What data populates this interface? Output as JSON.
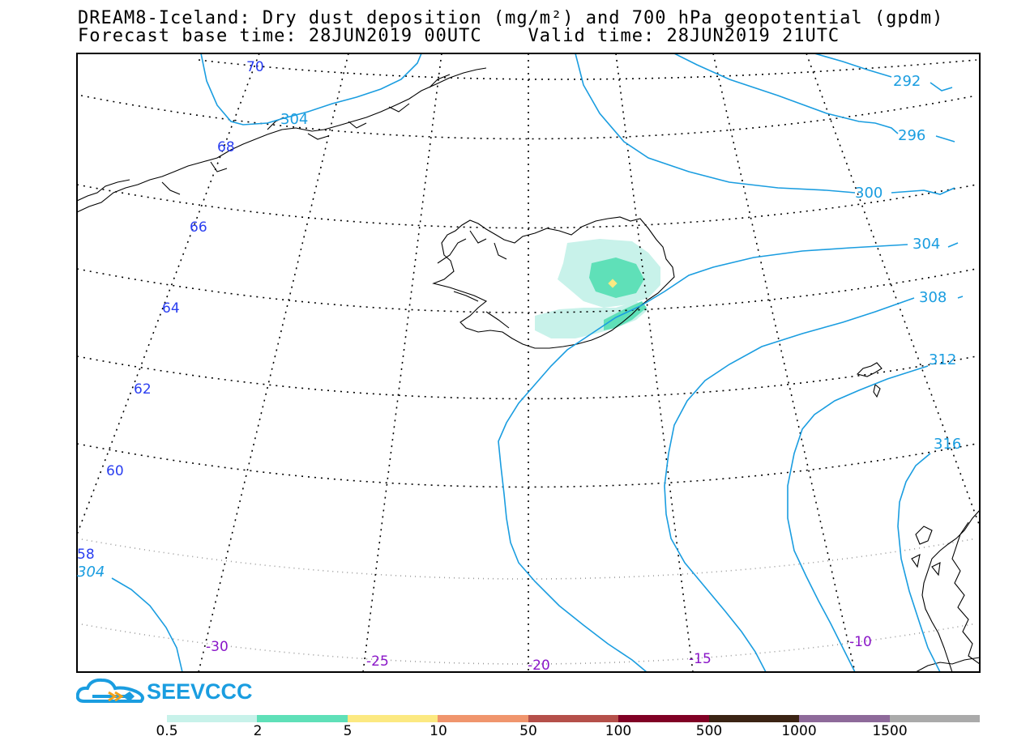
{
  "title": {
    "line1": "DREAM8-Iceland: Dry dust deposition (mg/m²) and 700 hPa geopotential (gpdm)",
    "line2": "Forecast base time: 28JUN2019 00UTC    Valid time: 28JUN2019 21UTC"
  },
  "map": {
    "lat_labels": [
      "70",
      "68",
      "66",
      "64",
      "62",
      "60",
      "58"
    ],
    "lon_labels": [
      "-30",
      "-25",
      "-20",
      "-15",
      "-10"
    ],
    "contour_labels": [
      "292",
      "296",
      "300",
      "304",
      "304",
      "304",
      "308",
      "312",
      "316"
    ],
    "contour_color": "#1a9de0",
    "lat_label_color": "#2a3ef0",
    "lon_label_color": "#8a16c8"
  },
  "logo": {
    "text": "SEEVCCC",
    "icon": "cloud-arrow-icon",
    "color": "#1a9de0"
  },
  "colorbar": {
    "colors": [
      "#c8f2ea",
      "#5fe0b8",
      "#fce981",
      "#f0956d",
      "#b5504a",
      "#800025",
      "#3b2414",
      "#8e6a9a",
      "#aaaaaa"
    ],
    "labels": [
      "0.5",
      "2",
      "5",
      "10",
      "50",
      "100",
      "500",
      "1000",
      "1500"
    ]
  }
}
